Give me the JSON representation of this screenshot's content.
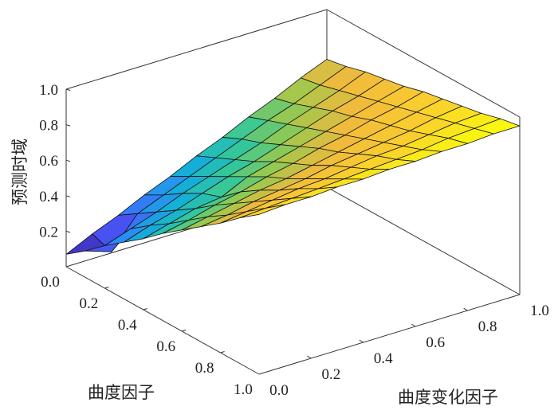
{
  "chart_data": {
    "type": "surface",
    "title": "",
    "xlabel": "曲度因子",
    "ylabel": "曲度变化因子",
    "zlabel": "预测时域",
    "xlim": [
      0,
      1
    ],
    "ylim": [
      0,
      1
    ],
    "zlim": [
      0,
      1
    ],
    "colormap": "parula",
    "x_ticks": [
      "0.0",
      "0.2",
      "0.4",
      "0.6",
      "0.8",
      "1.0"
    ],
    "y_ticks": [
      "0.0",
      "0.2",
      "0.4",
      "0.6",
      "0.8",
      "1.0"
    ],
    "z_ticks": [
      "0.2",
      "0.4",
      "0.6",
      "0.8",
      "1.0"
    ],
    "x": [
      0,
      0.1,
      0.2,
      0.3,
      0.4,
      0.5,
      0.6,
      0.7,
      0.8,
      0.9,
      1.0
    ],
    "y": [
      0,
      0.1,
      0.2,
      0.3,
      0.4,
      0.5,
      0.6,
      0.7,
      0.8,
      0.9,
      1.0
    ],
    "z_rows_by_x": [
      [
        0.07,
        0.14,
        0.2,
        0.27,
        0.33,
        0.4,
        0.46,
        0.53,
        0.59,
        0.66,
        0.72
      ],
      [
        0.15,
        0.1,
        0.27,
        0.33,
        0.39,
        0.45,
        0.51,
        0.57,
        0.62,
        0.68,
        0.74
      ],
      [
        0.24,
        0.29,
        0.34,
        0.4,
        0.45,
        0.5,
        0.55,
        0.61,
        0.66,
        0.71,
        0.77
      ],
      [
        0.32,
        0.37,
        0.41,
        0.46,
        0.51,
        0.55,
        0.6,
        0.65,
        0.7,
        0.74,
        0.79
      ],
      [
        0.4,
        0.44,
        0.48,
        0.5,
        0.57,
        0.61,
        0.65,
        0.69,
        0.73,
        0.77,
        0.81
      ],
      [
        0.49,
        0.52,
        0.56,
        0.59,
        0.63,
        0.66,
        0.7,
        0.73,
        0.77,
        0.8,
        0.84
      ],
      [
        0.57,
        0.6,
        0.63,
        0.66,
        0.68,
        0.71,
        0.74,
        0.77,
        0.8,
        0.83,
        0.86
      ],
      [
        0.65,
        0.67,
        0.7,
        0.72,
        0.74,
        0.77,
        0.79,
        0.81,
        0.83,
        0.86,
        0.88
      ],
      [
        0.73,
        0.75,
        0.77,
        0.79,
        0.8,
        0.82,
        0.84,
        0.85,
        0.87,
        0.89,
        0.9
      ],
      [
        0.82,
        0.83,
        0.84,
        0.85,
        0.86,
        0.87,
        0.88,
        0.89,
        0.91,
        0.92,
        0.93
      ],
      [
        0.9,
        0.91,
        0.91,
        0.92,
        0.92,
        0.93,
        0.93,
        0.94,
        0.94,
        0.95,
        0.95
      ]
    ],
    "grid": false,
    "box": true
  }
}
